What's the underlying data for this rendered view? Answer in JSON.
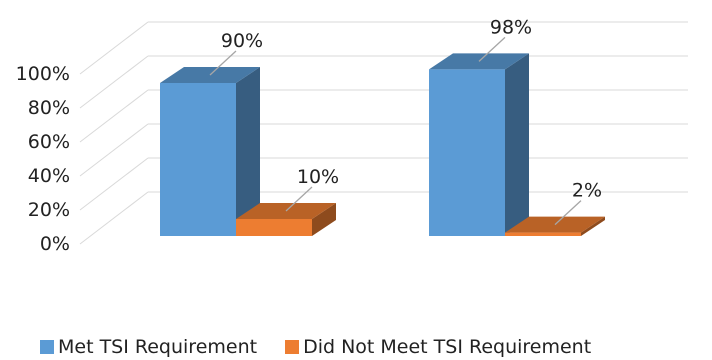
{
  "chart_data": {
    "type": "bar",
    "categories": [
      "",
      ""
    ],
    "series": [
      {
        "name": "Met TSI Requirement",
        "values": [
          90,
          98
        ],
        "labels": [
          "90%",
          "98%"
        ],
        "color": "#5b9bd5"
      },
      {
        "name": "Did Not Meet TSI Requirement",
        "values": [
          10,
          2
        ],
        "labels": [
          "10%",
          "2%"
        ],
        "color": "#ed7d31"
      }
    ],
    "yticks": [
      "0%",
      "20%",
      "40%",
      "60%",
      "80%",
      "100%"
    ],
    "ylim": [
      0,
      100
    ],
    "grid": true,
    "legend_position": "bottom",
    "style": "3d-column"
  }
}
